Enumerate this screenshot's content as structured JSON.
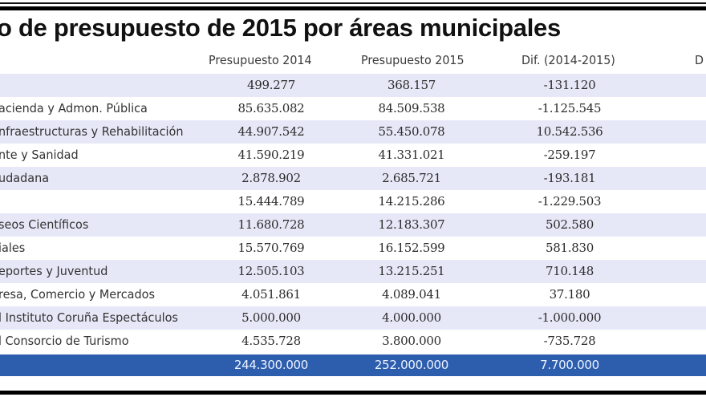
{
  "title": "o de presupuesto de 2015 por áreas municipales",
  "columns": [
    "Presupuesto 2014",
    "Presupuesto 2015",
    "Dif. (2014-2015)",
    "D"
  ],
  "colors": {
    "band": "#e7e8f7",
    "total": "#2d5eae"
  },
  "rows": [
    {
      "name": "",
      "p2014": "499.277",
      "p2015": "368.157",
      "dif": "-131.120"
    },
    {
      "name": "acienda y Admon. Pública",
      "p2014": "85.635.082",
      "p2015": "84.509.538",
      "dif": "-1.125.545"
    },
    {
      "name": "nfraestructuras y Rehabilitación",
      "p2014": "44.907.542",
      "p2015": "55.450.078",
      "dif": "10.542.536"
    },
    {
      "name": "nte y Sanidad",
      "p2014": "41.590.219",
      "p2015": "41.331.021",
      "dif": "-259.197"
    },
    {
      "name": "udadana",
      "p2014": "2.878.902",
      "p2015": "2.685.721",
      "dif": "-193.181"
    },
    {
      "name": "",
      "p2014": "15.444.789",
      "p2015": "14.215.286",
      "dif": "-1.229.503"
    },
    {
      "name": "seos Científicos",
      "p2014": "11.680.728",
      "p2015": "12.183.307",
      "dif": "502.580"
    },
    {
      "name": "iales",
      "p2014": "15.570.769",
      "p2015": "16.152.599",
      "dif": "581.830"
    },
    {
      "name": "eportes y Juventud",
      "p2014": "12.505.103",
      "p2015": "13.215.251",
      "dif": "710.148"
    },
    {
      "name": "resa, Comercio y Mercados",
      "p2014": "4.051.861",
      "p2015": "4.089.041",
      "dif": "37.180"
    },
    {
      "name": "l Instituto Coruña Espectáculos",
      "p2014": "5.000.000",
      "p2015": "4.000.000",
      "dif": "-1.000.000"
    },
    {
      "name": "l Consorcio de Turismo",
      "p2014": "4.535.728",
      "p2015": "3.800.000",
      "dif": "-735.728"
    }
  ],
  "total": {
    "name": "",
    "p2014": "244.300.000",
    "p2015": "252.000.000",
    "dif": "7.700.000"
  }
}
